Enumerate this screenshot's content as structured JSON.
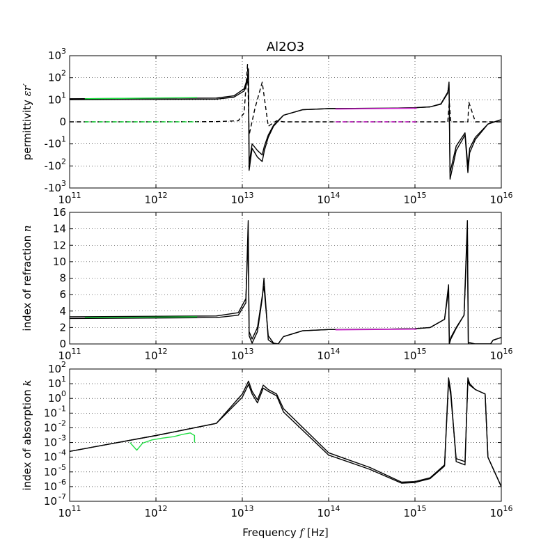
{
  "chart_data": {
    "type": "line",
    "title": "Al2O3",
    "xlabel": "Frequency $f$ [Hz]",
    "xlabel_parts": {
      "pre": "Frequency ",
      "var": "f",
      "post": " [Hz]"
    },
    "x_scale": "log",
    "xlim": [
      100000000000.0,
      1e+16
    ],
    "x_ticks": [
      {
        "base": "10",
        "exp": "11"
      },
      {
        "base": "10",
        "exp": "12"
      },
      {
        "base": "10",
        "exp": "13"
      },
      {
        "base": "10",
        "exp": "14"
      },
      {
        "base": "10",
        "exp": "15"
      },
      {
        "base": "10",
        "exp": "16"
      }
    ],
    "grid": true,
    "panels": [
      {
        "name": "permittivity",
        "ylabel_parts": {
          "pre": "permittivity ",
          "var": "εr′"
        },
        "y_scale": "symlog",
        "y_ticks": [
          {
            "value": 3,
            "label": "10",
            "exp": "3"
          },
          {
            "value": 2,
            "label": "10",
            "exp": "2"
          },
          {
            "value": 1,
            "label": "10",
            "exp": "1"
          },
          {
            "value": 0,
            "label": "0",
            "exp": ""
          },
          {
            "value": -1,
            "label": "-10",
            "exp": "1"
          },
          {
            "value": -2,
            "label": "-10",
            "exp": "2"
          },
          {
            "value": -3,
            "label": "-10",
            "exp": "3"
          }
        ],
        "series": [
          {
            "style": "black-solid",
            "x": [
              100000000000.0,
              5000000000000.0,
              8000000000000.0,
              10500000000000.0,
              11400000000000.0,
              11800000000000.0,
              12000000000000.0,
              13000000000000.0,
              15000000000000.0,
              17000000000000.0,
              18000000000000.0,
              20000000000000.0,
              23000000000000.0,
              30000000000000.0,
              50000000000000.0,
              100000000000000.0,
              500000000000000.0,
              1000000000000000.0,
              1500000000000000.0,
              2000000000000000.0,
              2400000000000000.0,
              2480000000000000.0,
              2550000000000000.0,
              3000000000000000.0,
              3800000000000000.0,
              4100000000000000.0,
              4300000000000000.0,
              5000000000000000.0,
              7000000000000000.0,
              1e+16
            ],
            "y": [
              1.0,
              1.03,
              1.12,
              1.4,
              1.8,
              2.4,
              -2.2,
              -1.2,
              -1.6,
              -1.8,
              -1.3,
              -0.7,
              -0.2,
              0.3,
              0.55,
              0.6,
              0.62,
              0.64,
              0.68,
              0.8,
              1.3,
              1.8,
              -2.6,
              -1.3,
              -0.6,
              -2.3,
              -1.4,
              -0.8,
              -0.1,
              0.1
            ]
          },
          {
            "style": "black-solid",
            "x": [
              100000000000.0,
              5000000000000.0,
              8000000000000.0,
              10500000000000.0,
              11400000000000.0,
              11800000000000.0,
              12000000000000.0,
              13000000000000.0,
              15000000000000.0,
              17000000000000.0,
              18000000000000.0,
              20000000000000.0,
              23000000000000.0,
              30000000000000.0,
              50000000000000.0,
              100000000000000.0,
              500000000000000.0,
              1000000000000000.0,
              1500000000000000.0,
              2000000000000000.0,
              2400000000000000.0,
              2480000000000000.0,
              2550000000000000.0,
              3000000000000000.0,
              3800000000000000.0,
              4100000000000000.0,
              4300000000000000.0,
              5000000000000000.0,
              7000000000000000.0,
              1e+16
            ],
            "y": [
              1.05,
              1.08,
              1.18,
              1.5,
              1.95,
              2.3,
              -1.9,
              -1.0,
              -1.3,
              -1.5,
              -1.1,
              -0.6,
              -0.15,
              0.3,
              0.55,
              0.6,
              0.62,
              0.64,
              0.68,
              0.82,
              1.35,
              1.7,
              -2.3,
              -1.1,
              -0.5,
              -2.0,
              -1.2,
              -0.7,
              -0.1,
              0.1
            ]
          },
          {
            "style": "black-dashed",
            "x": [
              100000000000.0,
              1000000000000.0,
              5000000000000.0,
              9000000000000.0,
              10500000000000.0,
              11500000000000.0,
              12000000000000.0,
              14000000000000.0,
              17000000000000.0,
              20000000000000.0,
              25000000000000.0,
              30000000000000.0,
              100000000000000.0,
              1000000000000000.0,
              2400000000000000.0,
              2500000000000000.0,
              2600000000000000.0,
              4100000000000000.0,
              4200000000000000.0,
              5000000000000000.0,
              1e+16
            ],
            "y": [
              0.0,
              0.0,
              0.01,
              0.05,
              0.4,
              2.6,
              -0.6,
              0.6,
              1.8,
              -0.2,
              0.05,
              0.0,
              0.0,
              0.0,
              0.0,
              0.9,
              0.0,
              0.0,
              0.9,
              0.0,
              0.0
            ]
          },
          {
            "style": "green-solid",
            "x": [
              150000000000.0,
              3000000000000.0
            ],
            "y": [
              1.05,
              1.1
            ]
          },
          {
            "style": "green-dashed",
            "x": [
              150000000000.0,
              3000000000000.0
            ],
            "y": [
              0.0,
              0.0
            ]
          },
          {
            "style": "magenta-solid",
            "x": [
              120000000000000.0,
              1050000000000000.0
            ],
            "y": [
              0.58,
              0.62
            ]
          },
          {
            "style": "magenta-dashed",
            "x": [
              120000000000000.0,
              1050000000000000.0
            ],
            "y": [
              0.0,
              0.0
            ]
          }
        ]
      },
      {
        "name": "refraction",
        "ylabel_parts": {
          "pre": "index of refraction ",
          "var": "n"
        },
        "y_scale": "linear",
        "ylim": [
          0,
          16
        ],
        "y_ticks": [
          {
            "value": 0,
            "label": "0",
            "exp": ""
          },
          {
            "value": 2,
            "label": "2",
            "exp": ""
          },
          {
            "value": 4,
            "label": "4",
            "exp": ""
          },
          {
            "value": 6,
            "label": "6",
            "exp": ""
          },
          {
            "value": 8,
            "label": "8",
            "exp": ""
          },
          {
            "value": 10,
            "label": "10",
            "exp": ""
          },
          {
            "value": 12,
            "label": "12",
            "exp": ""
          },
          {
            "value": 14,
            "label": "14",
            "exp": ""
          },
          {
            "value": 16,
            "label": "16",
            "exp": ""
          }
        ],
        "series": [
          {
            "style": "black-solid",
            "x": [
              100000000000.0,
              5000000000000.0,
              9000000000000.0,
              11000000000000.0,
              11700000000000.0,
              12000000000000.0,
              13000000000000.0,
              15000000000000.0,
              17000000000000.0,
              17800000000000.0,
              20000000000000.0,
              23000000000000.0,
              26000000000000.0,
              30000000000000.0,
              50000000000000.0,
              100000000000000.0,
              500000000000000.0,
              1000000000000000.0,
              1500000000000000.0,
              2200000000000000.0,
              2450000000000000.0,
              2500000000000000.0,
              2600000000000000.0,
              3000000000000000.0,
              3700000000000000.0,
              4050000000000000.0,
              4150000000000000.0,
              5000000000000000.0,
              7500000000000000.0,
              8000000000000000.0,
              1e+16
            ],
            "y": [
              3.1,
              3.2,
              3.5,
              5.0,
              15.0,
              1.0,
              0.1,
              1.5,
              5.5,
              8.0,
              0.5,
              0.05,
              0.0,
              0.9,
              1.6,
              1.75,
              1.8,
              1.85,
              2.0,
              3.0,
              7.2,
              0.0,
              0.6,
              1.9,
              3.5,
              15.0,
              0.0,
              0.0,
              0.0,
              0.45,
              0.8
            ]
          },
          {
            "style": "black-solid",
            "x": [
              100000000000.0,
              5000000000000.0,
              9000000000000.0,
              11000000000000.0,
              11700000000000.0,
              12000000000000.0,
              13000000000000.0,
              15000000000000.0,
              17000000000000.0,
              17800000000000.0,
              20000000000000.0,
              23000000000000.0,
              26000000000000.0,
              30000000000000.0,
              50000000000000.0,
              100000000000000.0,
              500000000000000.0,
              1000000000000000.0,
              1500000000000000.0,
              2200000000000000.0,
              2450000000000000.0,
              2500000000000000.0,
              2600000000000000.0,
              3000000000000000.0,
              3700000000000000.0,
              4050000000000000.0,
              4150000000000000.0,
              5000000000000000.0,
              7500000000000000.0,
              8000000000000000.0,
              1e+16
            ],
            "y": [
              3.3,
              3.4,
              3.8,
              5.5,
              13.0,
              1.5,
              0.6,
              2.0,
              5.8,
              7.0,
              1.0,
              0.1,
              0.0,
              0.9,
              1.6,
              1.75,
              1.8,
              1.85,
              2.0,
              3.0,
              6.6,
              0.1,
              0.8,
              2.0,
              3.5,
              13.5,
              0.2,
              0.0,
              0.0,
              0.45,
              0.8
            ]
          },
          {
            "style": "green-solid",
            "x": [
              150000000000.0,
              3000000000000.0
            ],
            "y": [
              3.2,
              3.3
            ]
          },
          {
            "style": "magenta-solid",
            "x": [
              120000000000000.0,
              1050000000000000.0
            ],
            "y": [
              1.72,
              1.8
            ]
          }
        ]
      },
      {
        "name": "absorption",
        "ylabel_parts": {
          "pre": "index of absorption ",
          "var": "k"
        },
        "y_scale": "log",
        "ylim": [
          1e-07,
          100.0
        ],
        "y_ticks": [
          {
            "value": 2,
            "label": "10",
            "exp": "2"
          },
          {
            "value": 1,
            "label": "10",
            "exp": "1"
          },
          {
            "value": 0,
            "label": "10",
            "exp": "0"
          },
          {
            "value": -1,
            "label": "10",
            "exp": "-1"
          },
          {
            "value": -2,
            "label": "10",
            "exp": "-2"
          },
          {
            "value": -3,
            "label": "10",
            "exp": "-3"
          },
          {
            "value": -4,
            "label": "10",
            "exp": "-4"
          },
          {
            "value": -5,
            "label": "10",
            "exp": "-5"
          },
          {
            "value": -6,
            "label": "10",
            "exp": "-6"
          },
          {
            "value": -7,
            "label": "10",
            "exp": "-7"
          }
        ],
        "series": [
          {
            "style": "black-solid",
            "x": [
              100000000000.0,
              1000000000000.0,
              5000000000000.0,
              10000000000000.0,
              11800000000000.0,
              13000000000000.0,
              15000000000000.0,
              17500000000000.0,
              20000000000000.0,
              25000000000000.0,
              30000000000000.0,
              100000000000000.0,
              300000000000000.0,
              700000000000000.0,
              1000000000000000.0,
              1500000000000000.0,
              2200000000000000.0,
              2450000000000000.0,
              2600000000000000.0,
              3000000000000000.0,
              3800000000000000.0,
              4100000000000000.0,
              4300000000000000.0,
              5000000000000000.0,
              6500000000000000.0,
              7000000000000000.0,
              1e+16
            ],
            "y": [
              0.00025,
              0.003,
              0.02,
              2.0,
              15,
              3,
              0.8,
              8,
              4,
              2,
              0.2,
              0.0002,
              2e-05,
              2e-06,
              2.2e-06,
              4e-06,
              3e-05,
              25,
              3,
              5e-05,
              3e-05,
              25,
              10,
              4,
              2,
              0.0001,
              1e-06
            ]
          },
          {
            "style": "black-solid",
            "x": [
              100000000000.0,
              1000000000000.0,
              5000000000000.0,
              10000000000000.0,
              11800000000000.0,
              13000000000000.0,
              15000000000000.0,
              17500000000000.0,
              20000000000000.0,
              25000000000000.0,
              30000000000000.0,
              100000000000000.0,
              300000000000000.0,
              700000000000000.0,
              1000000000000000.0,
              1500000000000000.0,
              2200000000000000.0,
              2450000000000000.0,
              2600000000000000.0,
              3000000000000000.0,
              3800000000000000.0,
              4100000000000000.0,
              4300000000000000.0,
              5000000000000000.0,
              6500000000000000.0,
              7000000000000000.0,
              1e+16
            ],
            "y": [
              0.00025,
              0.003,
              0.02,
              1.2,
              9,
              2,
              0.5,
              5,
              3,
              1.5,
              0.12,
              0.00014,
              1.5e-05,
              1.7e-06,
              1.9e-06,
              3.5e-06,
              2.5e-05,
              15,
              1.5,
              8e-05,
              5e-05,
              15,
              8,
              4,
              2,
              0.0001,
              1e-06
            ]
          },
          {
            "style": "green-solid",
            "x": [
              500000000000.0,
              600000000000.0,
              700000000000.0,
              900000000000.0,
              1200000000000.0,
              1600000000000.0,
              2000000000000.0,
              2500000000000.0,
              2800000000000.0,
              2800000000000.0
            ],
            "y": [
              0.001,
              0.0003,
              0.0009,
              0.0015,
              0.002,
              0.0025,
              0.0035,
              0.0045,
              0.003,
              0.001
            ]
          }
        ]
      }
    ]
  }
}
